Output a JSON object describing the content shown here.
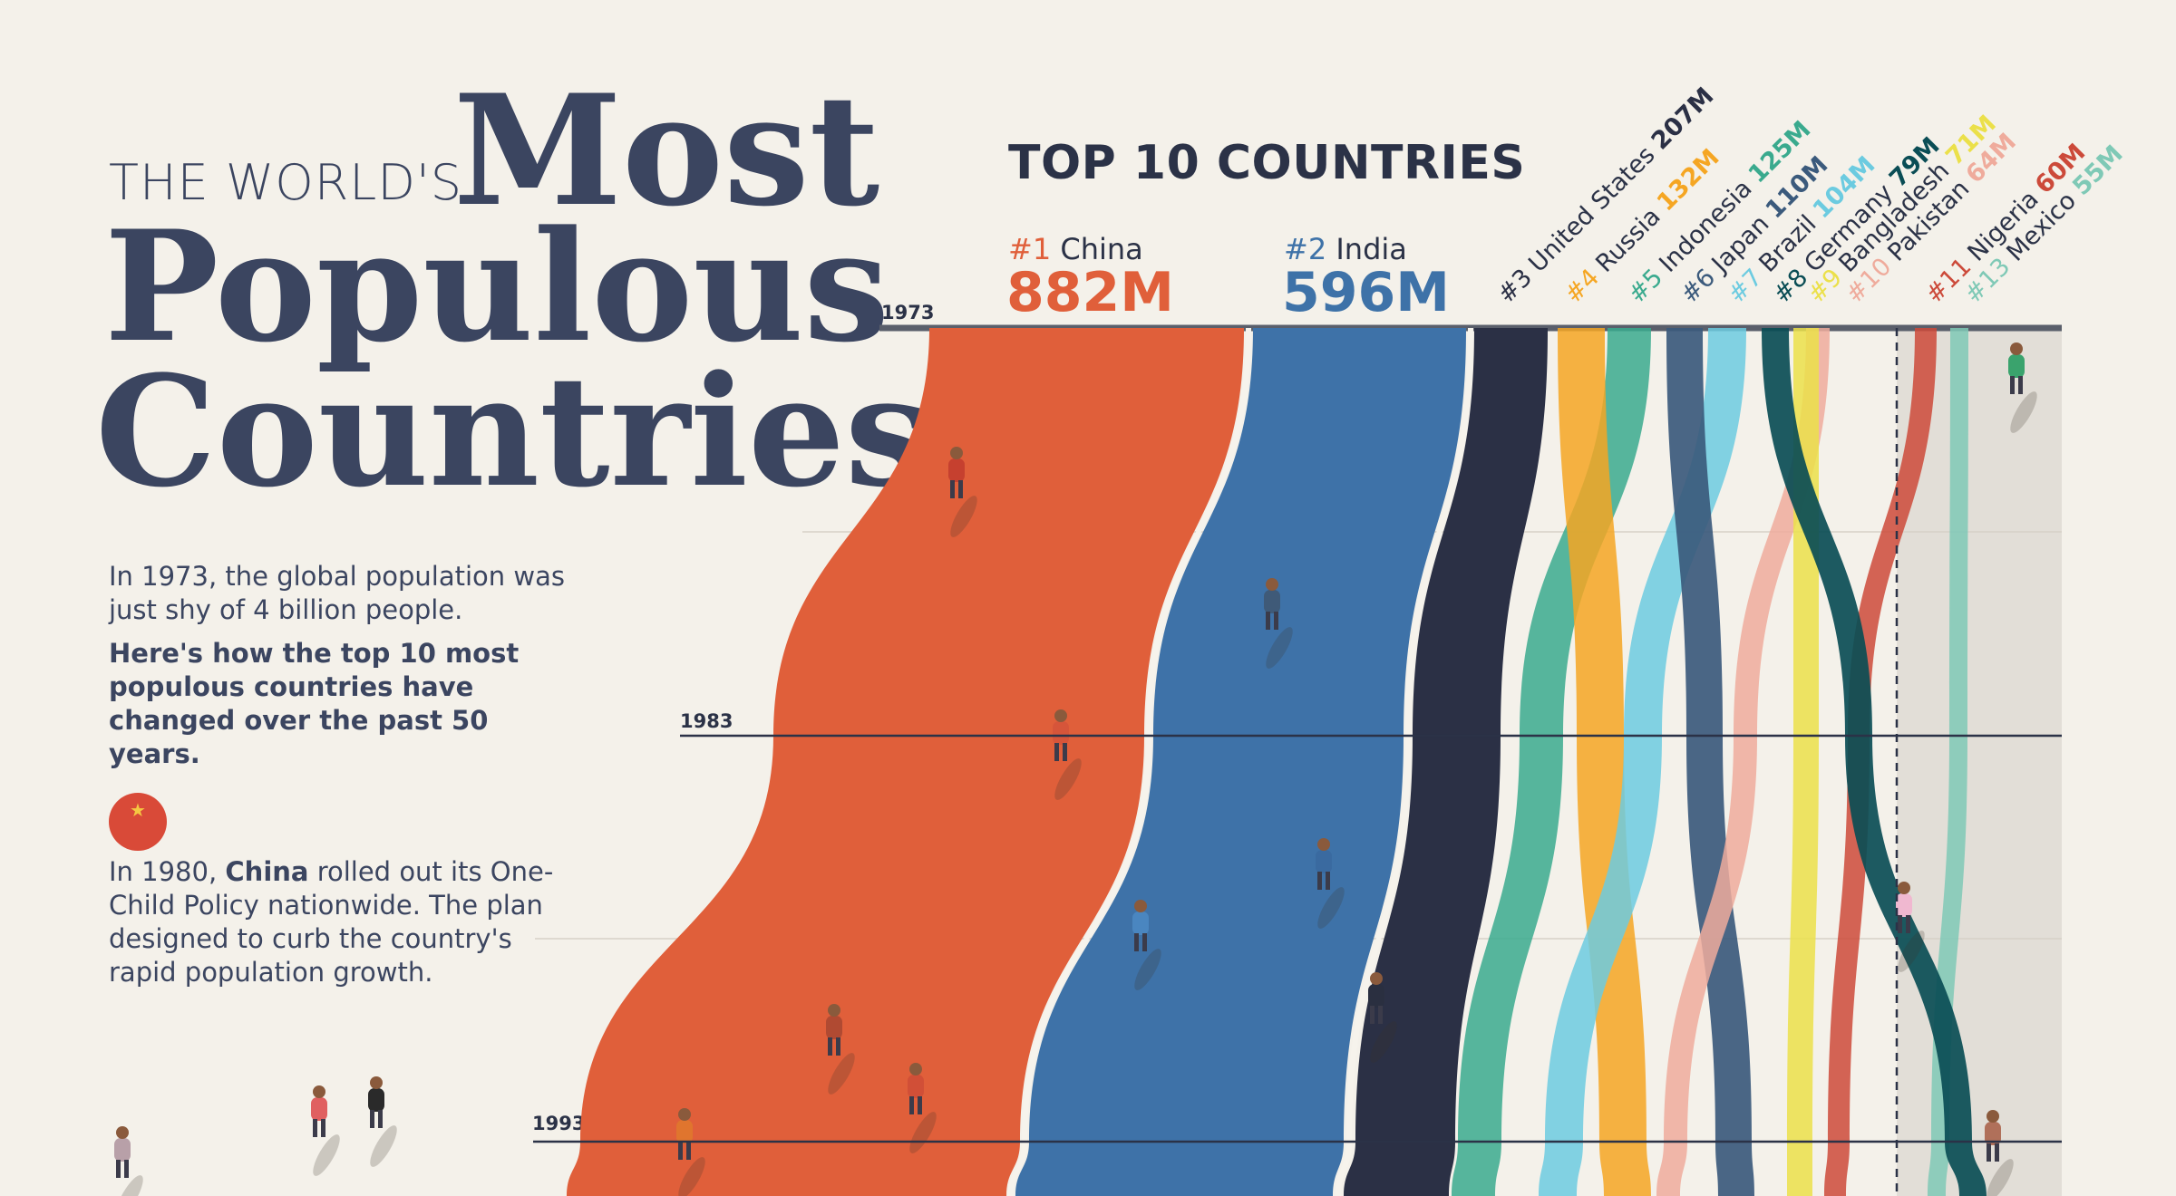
{
  "header": {
    "pre_title": "THE WORLD'S",
    "title_word1": "Most",
    "title_word2": "Populous",
    "title_word3": "Countries"
  },
  "intro": {
    "line1": "In 1973, the global population was just shy of 4 billion people.",
    "line2": "Here's how the top 10 most populous countries have changed over the past 50 years."
  },
  "annotation_china": {
    "prefix": "In 1980, ",
    "bold": "China",
    "rest": " rolled out its One-Child Policy nationwide. The plan designed to curb the country's rapid population growth."
  },
  "chart_data": {
    "type": "area",
    "title": "TOP 10 COUNTRIES",
    "years": [
      "1973",
      "1983",
      "1993"
    ],
    "colors": {
      "China": "#e05f3a",
      "India": "#3e72a8",
      "United States": "#2b3045",
      "Russia": "#f5a623",
      "Indonesia": "#3aaa8e",
      "Japan": "#3b5a7c",
      "Brazil": "#6ccbe0",
      "Germany": "#0a4d55",
      "Bangladesh": "#ebe04a",
      "Pakistan": "#efab9c",
      "Nigeria": "#cc4a3a",
      "Mexico": "#7fc9b6"
    },
    "series": [
      {
        "rank": "#1",
        "name": "China",
        "value": "882M"
      },
      {
        "rank": "#2",
        "name": "India",
        "value": "596M"
      },
      {
        "rank": "#3",
        "name": "United States",
        "value": "207M"
      },
      {
        "rank": "#4",
        "name": "Russia",
        "value": "132M"
      },
      {
        "rank": "#5",
        "name": "Indonesia",
        "value": "125M"
      },
      {
        "rank": "#6",
        "name": "Japan",
        "value": "110M"
      },
      {
        "rank": "#7",
        "name": "Brazil",
        "value": "104M"
      },
      {
        "rank": "#8",
        "name": "Germany",
        "value": "79M"
      },
      {
        "rank": "#9",
        "name": "Bangladesh",
        "value": "71M"
      },
      {
        "rank": "#10",
        "name": "Pakistan",
        "value": "64M"
      },
      {
        "rank": "#11",
        "name": "Nigeria",
        "value": "60M"
      },
      {
        "rank": "#13",
        "name": "Mexico",
        "value": "55M"
      }
    ]
  }
}
